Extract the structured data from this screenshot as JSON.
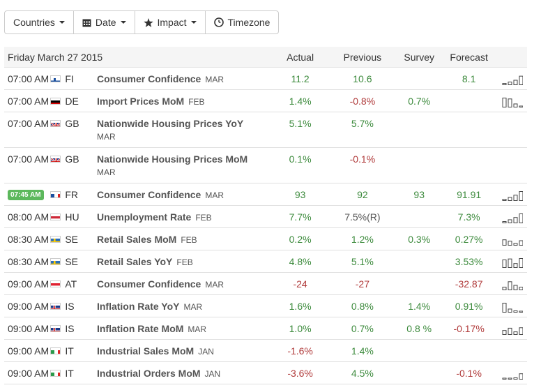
{
  "toolbar": {
    "countries": "Countries",
    "date": "Date",
    "impact": "Impact",
    "timezone": "Timezone"
  },
  "table": {
    "date_header": "Friday March 27 2015",
    "col_actual": "Actual",
    "col_previous": "Previous",
    "col_survey": "Survey",
    "col_forecast": "Forecast"
  },
  "colors": {
    "positive": "#3c8a3c",
    "negative": "#b03a3a",
    "badge": "#5cb85c"
  },
  "rows": [
    {
      "time": "07:00 AM",
      "badge": false,
      "country": "FI",
      "flag": "finland-flag-icon",
      "event": "Consumer Confidence",
      "ref": "MAR",
      "ref_wrap": false,
      "actual": "11.2",
      "actual_c": "pos",
      "previous": "10.6",
      "previous_c": "pos",
      "survey": "",
      "survey_c": "pos",
      "forecast": "8.1",
      "forecast_c": "pos",
      "spark": [
        0.15,
        0.3,
        0.5,
        0.95
      ]
    },
    {
      "time": "07:00 AM",
      "badge": false,
      "country": "DE",
      "flag": "germany-flag-icon",
      "event": "Import Prices MoM",
      "ref": "FEB",
      "ref_wrap": false,
      "actual": "1.4%",
      "actual_c": "pos",
      "previous": "-0.8%",
      "previous_c": "neg",
      "survey": "0.7%",
      "survey_c": "pos",
      "forecast": "",
      "forecast_c": "pos",
      "spark": [
        1,
        0.9,
        0.35,
        0.1
      ]
    },
    {
      "time": "07:00 AM",
      "badge": false,
      "country": "GB",
      "flag": "uk-flag-icon",
      "event": "Nationwide Housing Prices YoY",
      "ref": "MAR",
      "ref_wrap": true,
      "actual": "5.1%",
      "actual_c": "pos",
      "previous": "5.7%",
      "previous_c": "pos",
      "survey": "",
      "survey_c": "pos",
      "forecast": "",
      "forecast_c": "pos",
      "spark": []
    },
    {
      "time": "07:00 AM",
      "badge": false,
      "country": "GB",
      "flag": "uk-flag-icon",
      "event": "Nationwide Housing Prices MoM",
      "ref": "MAR",
      "ref_wrap": true,
      "actual": "0.1%",
      "actual_c": "pos",
      "previous": "-0.1%",
      "previous_c": "neg",
      "survey": "",
      "survey_c": "pos",
      "forecast": "",
      "forecast_c": "pos",
      "spark": []
    },
    {
      "time": "07:45 AM",
      "badge": true,
      "country": "FR",
      "flag": "france-flag-icon",
      "event": "Consumer Confidence",
      "ref": "MAR",
      "ref_wrap": false,
      "actual": "93",
      "actual_c": "pos",
      "previous": "92",
      "previous_c": "pos",
      "survey": "93",
      "survey_c": "pos",
      "forecast": "91.91",
      "forecast_c": "pos",
      "spark": [
        0.15,
        0.35,
        0.6,
        1
      ]
    },
    {
      "time": "08:00 AM",
      "badge": false,
      "country": "HU",
      "flag": "hungary-flag-icon",
      "event": "Unemployment Rate",
      "ref": "FEB",
      "ref_wrap": false,
      "actual": "7.7%",
      "actual_c": "pos",
      "previous": "7.5%(R)",
      "previous_c": "neu",
      "survey": "",
      "survey_c": "pos",
      "forecast": "7.3%",
      "forecast_c": "pos",
      "spark": [
        0.15,
        0.35,
        0.6,
        1
      ]
    },
    {
      "time": "08:30 AM",
      "badge": false,
      "country": "SE",
      "flag": "sweden-flag-icon",
      "event": "Retail Sales MoM",
      "ref": "FEB",
      "ref_wrap": false,
      "actual": "0.2%",
      "actual_c": "pos",
      "previous": "1.2%",
      "previous_c": "pos",
      "survey": "0.3%",
      "survey_c": "pos",
      "forecast": "0.27%",
      "forecast_c": "pos",
      "spark": [
        0.6,
        0.45,
        0.2,
        0.5
      ]
    },
    {
      "time": "08:30 AM",
      "badge": false,
      "country": "SE",
      "flag": "sweden-flag-icon",
      "event": "Retail Sales YoY",
      "ref": "FEB",
      "ref_wrap": false,
      "actual": "4.8%",
      "actual_c": "pos",
      "previous": "5.1%",
      "previous_c": "pos",
      "survey": "",
      "survey_c": "pos",
      "forecast": "3.53%",
      "forecast_c": "pos",
      "spark": [
        0.85,
        0.95,
        0.45,
        1
      ]
    },
    {
      "time": "09:00 AM",
      "badge": false,
      "country": "AT",
      "flag": "austria-flag-icon",
      "event": "Consumer Confidence",
      "ref": "MAR",
      "ref_wrap": false,
      "actual": "-24",
      "actual_c": "neg",
      "previous": "-27",
      "previous_c": "neg",
      "survey": "",
      "survey_c": "pos",
      "forecast": "-32.87",
      "forecast_c": "neg",
      "spark": [
        0.3,
        0.9,
        0.5,
        0.3
      ]
    },
    {
      "time": "09:00 AM",
      "badge": false,
      "country": "IS",
      "flag": "iceland-flag-icon",
      "event": "Inflation Rate YoY",
      "ref": "MAR",
      "ref_wrap": false,
      "actual": "1.6%",
      "actual_c": "pos",
      "previous": "0.8%",
      "previous_c": "pos",
      "survey": "1.4%",
      "survey_c": "pos",
      "forecast": "0.91%",
      "forecast_c": "pos",
      "spark": [
        1,
        0.35,
        0.15,
        0.1
      ]
    },
    {
      "time": "09:00 AM",
      "badge": false,
      "country": "IS",
      "flag": "iceland-flag-icon",
      "event": "Inflation Rate MoM",
      "ref": "MAR",
      "ref_wrap": false,
      "actual": "1.0%",
      "actual_c": "pos",
      "previous": "0.7%",
      "previous_c": "pos",
      "survey": "0.8 %",
      "survey_c": "pos",
      "forecast": "-0.17%",
      "forecast_c": "neg",
      "spark": [
        0.45,
        0.7,
        0.3,
        0.75
      ]
    },
    {
      "time": "09:00 AM",
      "badge": false,
      "country": "IT",
      "flag": "italy-flag-icon",
      "event": "Industrial Sales MoM",
      "ref": "JAN",
      "ref_wrap": false,
      "actual": "-1.6%",
      "actual_c": "neg",
      "previous": "1.4%",
      "previous_c": "pos",
      "survey": "",
      "survey_c": "pos",
      "forecast": "",
      "forecast_c": "pos",
      "spark": []
    },
    {
      "time": "09:00 AM",
      "badge": false,
      "country": "IT",
      "flag": "italy-flag-icon",
      "event": "Industrial Orders MoM",
      "ref": "JAN",
      "ref_wrap": false,
      "actual": "-3.6%",
      "actual_c": "neg",
      "previous": "4.5%",
      "previous_c": "pos",
      "survey": "",
      "survey_c": "pos",
      "forecast": "-0.1%",
      "forecast_c": "neg",
      "spark": [
        0.1,
        0.1,
        0.15,
        0.6
      ]
    }
  ]
}
